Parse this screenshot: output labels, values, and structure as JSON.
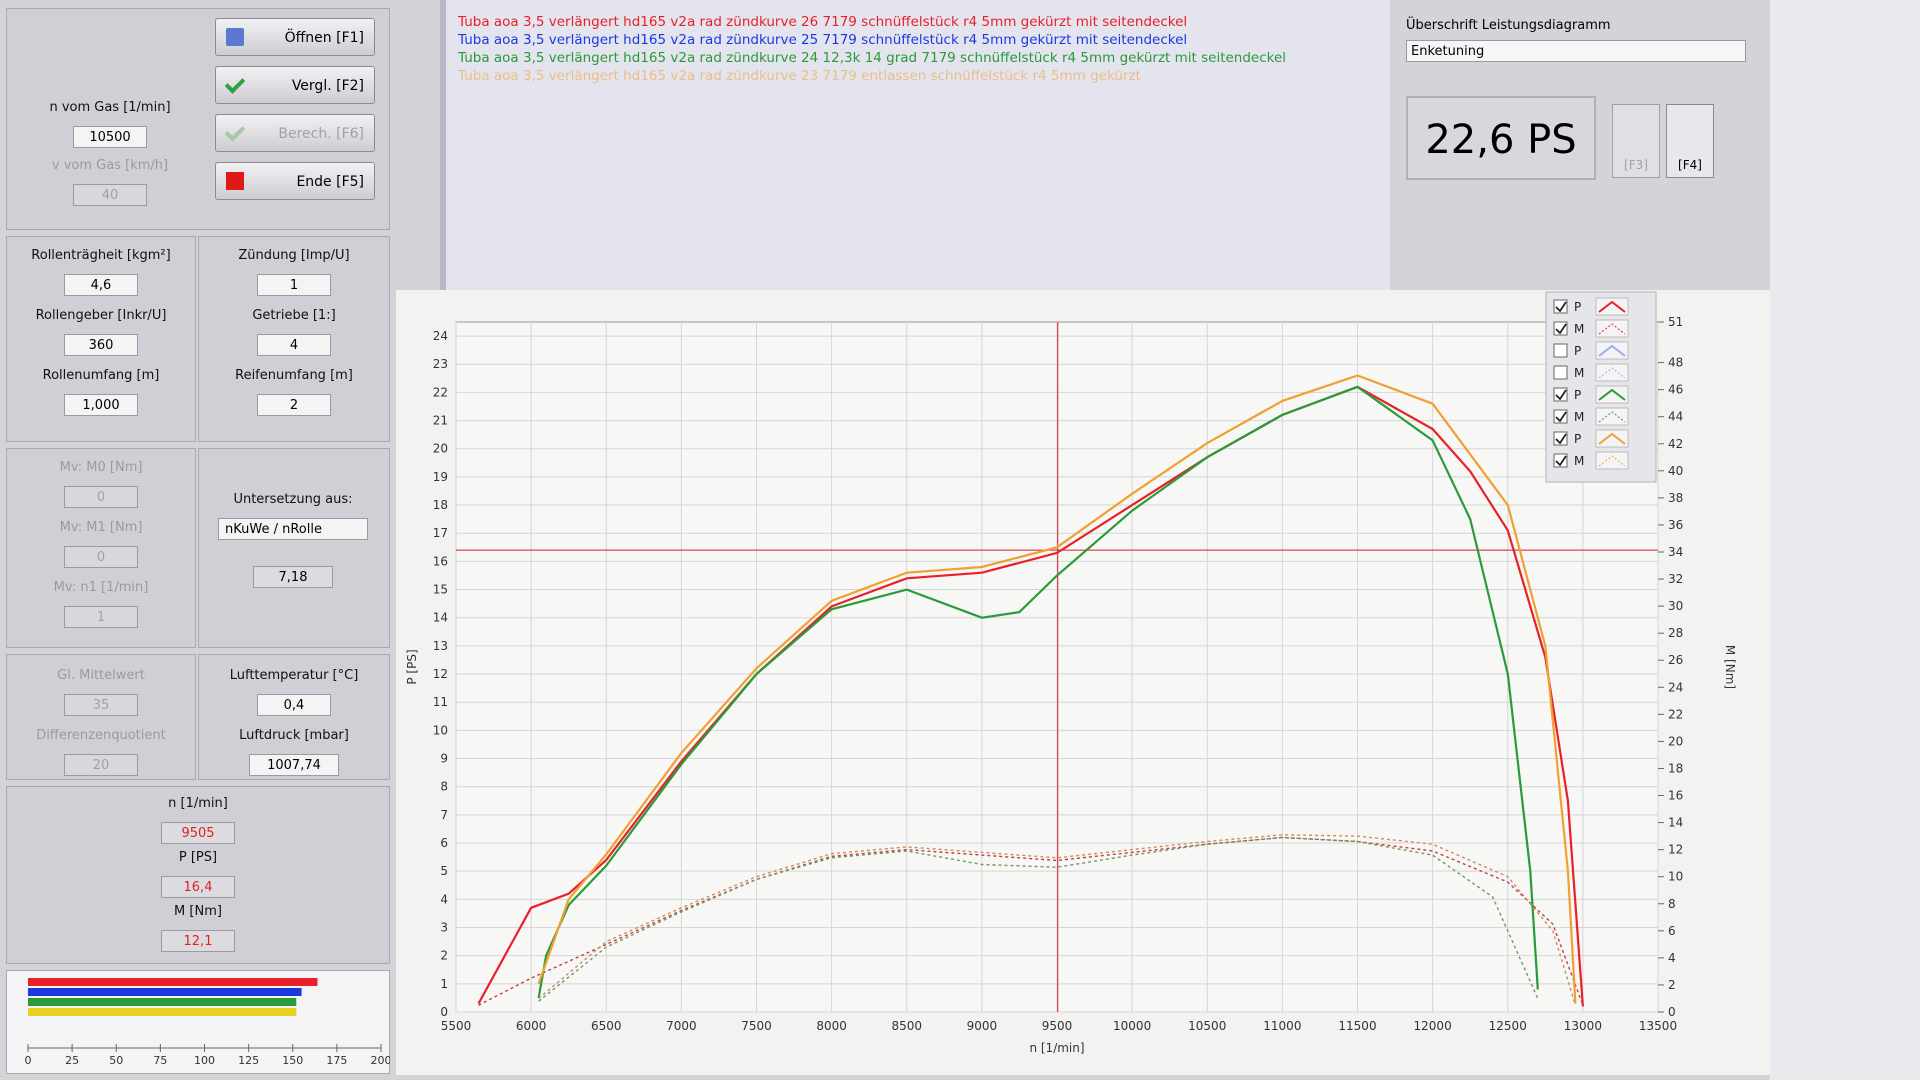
{
  "toolbar": {
    "buttons": [
      "Öffnen [F1]",
      "Vergl. [F2]",
      "Berech. [F6]",
      "Ende [F5]"
    ]
  },
  "fields": [
    {
      "label": "n vom Gas [1/min]",
      "value": "10500"
    },
    {
      "label": "v vom Gas [km/h]",
      "value": "40"
    },
    {
      "label": "Rollenträgheit [kgm²]",
      "value": "4,6"
    },
    {
      "label": "Zündung [Imp/U]",
      "value": "1"
    },
    {
      "label": "Rollengeber [Inkr/U]",
      "value": "360"
    },
    {
      "label": "Getriebe [1:]",
      "value": "4"
    },
    {
      "label": "Rollenumfang [m]",
      "value": "1,000"
    },
    {
      "label": "Reifenumfang [m]",
      "value": "2"
    },
    {
      "label": "Mv: M0 [Nm]",
      "value": "0"
    },
    {
      "label": "Mv: M1 [Nm]",
      "value": "0"
    },
    {
      "label": "Mv: n1 [1/min]",
      "value": "1"
    },
    {
      "label": "Gl. Mittelwert",
      "value": "35"
    },
    {
      "label": "Differenzenquotient",
      "value": "20"
    },
    {
      "label": "Lufttemperatur [°C]",
      "value": "0,4"
    },
    {
      "label": "Luftdruck [mbar]",
      "value": "1007,74"
    },
    {
      "label": "n [1/min]",
      "value": "9505"
    },
    {
      "label": "P [PS]",
      "value": "16,4"
    },
    {
      "label": "M [Nm]",
      "value": "12,1"
    }
  ],
  "reduction": {
    "label": "Untersetzung aus:",
    "source": "nKuWe / nRolle",
    "value": "7,18"
  },
  "meter": {
    "values": [
      164,
      155,
      152,
      152
    ],
    "colors": [
      "#e8202a",
      "#1a3adf",
      "#2a9a3a",
      "#e8d020"
    ],
    "xlim": [
      0,
      200
    ],
    "xticks": [
      0,
      25,
      50,
      75,
      100,
      125,
      150,
      175,
      200
    ]
  },
  "files": [
    {
      "name": "Tuba  aoa 3,5 verlängert hd165 v2a rad zündkurve 26 7179 schnüffelstück r4 5mm gekürzt mit seitendeckel",
      "color": "#e8202a"
    },
    {
      "name": "Tuba  aoa 3,5 verlängert hd165 v2a rad zündkurve 25 7179 schnüffelstück r4 5mm gekürzt mit seitendeckel",
      "color": "#1a3adf"
    },
    {
      "name": "Tuba  aoa 3,5 verlängert hd165 v2a rad zündkurve 24 12,3k 14 grad 7179 schnüffelstück r4 5mm gekürzt mit seitendeckel",
      "color": "#2a9a3a"
    },
    {
      "name": "Tuba  aoa 3,5 verlängert hd165 v2a rad zündkurve 23 7179 entlassen schnüffelstück r4 5mm gekürzt",
      "color": "#f0a030"
    }
  ],
  "header": {
    "label": "Überschrift Leistungsdiagramm",
    "value": "Enketuning",
    "display": "22,6 PS",
    "buttons": [
      "[F3]",
      "[F4]"
    ]
  },
  "toggles": [
    {
      "label": "P",
      "checked": true,
      "color": "#e8202a"
    },
    {
      "label": "M",
      "checked": true,
      "color": "#e8202a"
    },
    {
      "label": "P",
      "checked": false,
      "color": "#1a3adf"
    },
    {
      "label": "M",
      "checked": false,
      "color": "#1a3adf"
    },
    {
      "label": "P",
      "checked": true,
      "color": "#2a9a3a"
    },
    {
      "label": "M",
      "checked": true,
      "color": "#2a9a3a"
    },
    {
      "label": "P",
      "checked": true,
      "color": "#f0a030"
    },
    {
      "label": "M",
      "checked": true,
      "color": "#f0a030"
    }
  ],
  "chart_data": {
    "type": "line",
    "x_label": "n [1/min]",
    "y_label": "P [PS]",
    "y2_label": "M [Nm]",
    "xlim": [
      5500,
      13500
    ],
    "xticks": [
      5500,
      6000,
      6500,
      7000,
      7500,
      8000,
      8500,
      9000,
      9500,
      10000,
      10500,
      11000,
      11500,
      12000,
      12500,
      13000,
      13500
    ],
    "ylim": [
      0,
      24.5
    ],
    "yticks": [
      0,
      1,
      2,
      3,
      4,
      5,
      6,
      7,
      8,
      9,
      10,
      11,
      12,
      13,
      14,
      15,
      16,
      17,
      18,
      19,
      20,
      21,
      22,
      23,
      24
    ],
    "y2lim": [
      0,
      51
    ],
    "y2ticks": [
      0,
      2,
      4,
      6,
      8,
      10,
      12,
      14,
      16,
      18,
      20,
      22,
      24,
      26,
      28,
      30,
      32,
      34,
      36,
      38,
      40,
      42,
      44,
      46,
      48,
      51
    ],
    "grid": true,
    "cursor": {
      "x": 9505,
      "y": 16.4
    },
    "series": [
      {
        "color": "#e8202a",
        "axis": "y",
        "dashed": false,
        "x": [
          5650,
          6000,
          6250,
          6500,
          7000,
          7500,
          8000,
          8500,
          9000,
          9500,
          10000,
          10500,
          11000,
          11500,
          12000,
          12250,
          12500,
          12750,
          12900,
          13000
        ],
        "values": [
          0.3,
          3.7,
          4.2,
          5.4,
          8.9,
          12.0,
          14.4,
          15.4,
          15.6,
          16.3,
          18.0,
          19.7,
          21.2,
          22.2,
          20.7,
          19.2,
          17.1,
          12.6,
          7.5,
          0.2
        ]
      },
      {
        "color": "#c04040",
        "axis": "y2",
        "dashed": true,
        "x": [
          5650,
          6000,
          6500,
          7000,
          7500,
          8000,
          8500,
          9000,
          9500,
          10000,
          10500,
          11000,
          11500,
          12000,
          12500,
          12800,
          13000
        ],
        "values": [
          0.5,
          2.5,
          5.0,
          7.5,
          9.8,
          11.5,
          12.0,
          11.6,
          11.2,
          11.8,
          12.4,
          12.9,
          12.6,
          11.9,
          9.6,
          6.5,
          0.5
        ]
      },
      {
        "color": "#2a9a3a",
        "axis": "y",
        "dashed": false,
        "x": [
          6050,
          6100,
          6250,
          6500,
          7000,
          7500,
          8000,
          8500,
          9000,
          9250,
          9500,
          10000,
          10500,
          11000,
          11500,
          12000,
          12250,
          12500,
          12650,
          12700
        ],
        "values": [
          0.5,
          2.0,
          3.8,
          5.2,
          8.8,
          12.0,
          14.3,
          15.0,
          14.0,
          14.2,
          15.5,
          17.8,
          19.7,
          21.2,
          22.2,
          20.3,
          17.5,
          12.0,
          5.0,
          0.8
        ]
      },
      {
        "color": "#709a60",
        "axis": "y2",
        "dashed": true,
        "x": [
          6050,
          6500,
          7000,
          7500,
          8000,
          8500,
          9000,
          9500,
          10000,
          10500,
          11000,
          11500,
          12000,
          12400,
          12700
        ],
        "values": [
          0.8,
          4.8,
          7.4,
          9.8,
          11.4,
          11.9,
          10.9,
          10.7,
          11.6,
          12.4,
          12.9,
          12.6,
          11.6,
          8.5,
          1.0
        ]
      },
      {
        "color": "#f0a030",
        "axis": "y",
        "dashed": false,
        "x": [
          6050,
          6250,
          6500,
          7000,
          7500,
          8000,
          8500,
          9000,
          9500,
          10000,
          10500,
          11000,
          11500,
          12000,
          12500,
          12750,
          12900,
          12950
        ],
        "values": [
          1.0,
          4.0,
          5.6,
          9.2,
          12.2,
          14.6,
          15.6,
          15.8,
          16.5,
          18.4,
          20.2,
          21.7,
          22.6,
          21.6,
          18.0,
          13.0,
          5.0,
          0.3
        ]
      },
      {
        "color": "#d08a60",
        "axis": "y2",
        "dashed": true,
        "x": [
          6050,
          6500,
          7000,
          7500,
          8000,
          8500,
          9000,
          9500,
          10000,
          10500,
          11000,
          11500,
          12000,
          12500,
          12800,
          12950
        ],
        "values": [
          1.0,
          5.2,
          7.7,
          10.0,
          11.7,
          12.2,
          11.8,
          11.4,
          12.0,
          12.6,
          13.1,
          13.0,
          12.4,
          10.0,
          6.0,
          0.5
        ]
      }
    ]
  }
}
